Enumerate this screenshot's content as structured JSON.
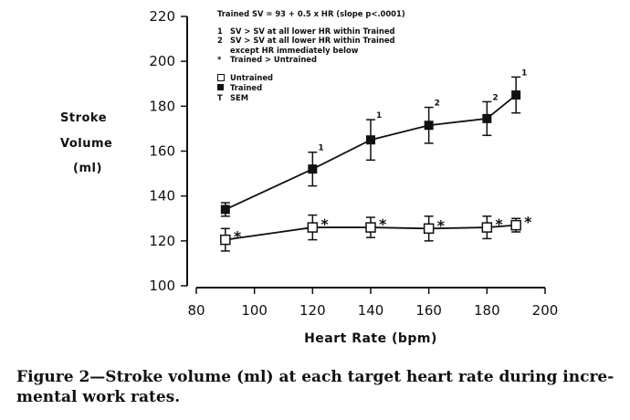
{
  "chart_data": {
    "type": "line",
    "title": "",
    "xlabel": "Heart Rate (bpm)",
    "ylabel_lines": [
      "Stroke",
      "Volume",
      "(ml)"
    ],
    "xlim": [
      80,
      200
    ],
    "ylim": [
      100,
      220
    ],
    "xticks": [
      80,
      100,
      120,
      140,
      160,
      180,
      200
    ],
    "yticks": [
      100,
      120,
      140,
      160,
      180,
      200,
      220
    ],
    "grid": false,
    "series": [
      {
        "name": "Trained",
        "marker": "filled-square",
        "x": [
          90,
          120,
          140,
          160,
          180,
          190
        ],
        "y": [
          134,
          152,
          165,
          171.5,
          174.5,
          185
        ],
        "sem": [
          3,
          7.5,
          9,
          8,
          7.5,
          8
        ],
        "annotations": [
          "",
          "1",
          "1",
          "2",
          "2",
          "1"
        ]
      },
      {
        "name": "Untrained",
        "marker": "open-square",
        "x": [
          90,
          120,
          140,
          160,
          180,
          190
        ],
        "y": [
          120.5,
          126,
          126,
          125.5,
          126,
          127
        ],
        "sem": [
          5,
          5.5,
          4.5,
          5.5,
          5,
          3
        ],
        "annotations": [
          "*",
          "*",
          "*",
          "*",
          "*",
          "*"
        ]
      }
    ],
    "legend": {
      "placement": "top-left",
      "equation": "Trained SV = 93 + 0.5 x HR (slope p<.0001)",
      "notes": [
        {
          "symbol": "1",
          "text": "SV > SV at all lower HR within Trained"
        },
        {
          "symbol": "2",
          "text": "SV > SV at all lower HR within Trained"
        },
        {
          "symbol": "",
          "text": "except HR immediately below"
        },
        {
          "symbol": "*",
          "text": "Trained > Untrained"
        }
      ],
      "entries": [
        {
          "symbol": "open-square",
          "text": "Untrained"
        },
        {
          "symbol": "filled-square",
          "text": "Trained"
        },
        {
          "symbol": "T",
          "text": "SEM"
        }
      ]
    }
  },
  "caption": {
    "text": "Figure 2—Stroke volume (ml) at each target heart rate during incremental work rates.",
    "line1": "Figure 2—Stroke volume (ml) at each target heart rate during incre-",
    "line2": "mental work rates."
  }
}
